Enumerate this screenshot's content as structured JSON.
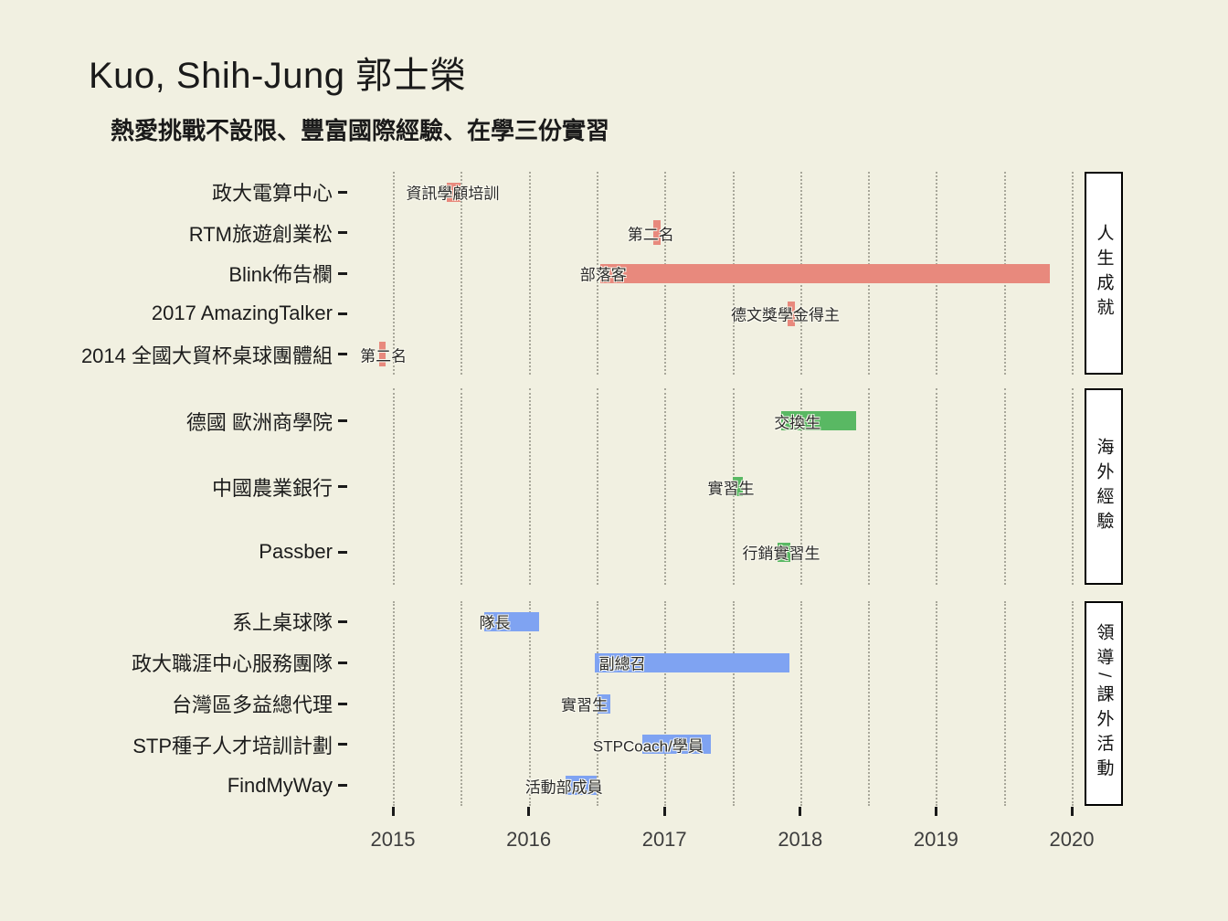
{
  "title": "Kuo, Shih-Jung  郭士榮",
  "subtitle": "熱愛挑戰不設限、豐富國際經驗、在學三份實習",
  "colors": {
    "background": "#f1f0e1",
    "achievement": "#e8897d",
    "overseas": "#59b863",
    "leadership": "#7fa3f2",
    "strip_bg": "#ffffff",
    "strip_border": "#000000",
    "gridline": "#a8a79a",
    "text": "#1a1a1a"
  },
  "chart_data": {
    "type": "gantt",
    "title": "Kuo, Shih-Jung  郭士榮",
    "subtitle": "熱愛挑戰不設限、豐富國際經驗、在學三份實習",
    "x_axis": {
      "ticks": [
        2015,
        2016,
        2017,
        2018,
        2019,
        2020
      ],
      "tick_labels": [
        "2015",
        "2016",
        "2017",
        "2018",
        "2019",
        "2020"
      ],
      "grid_start": 2015,
      "grid_end": 2020,
      "grid_step": 0.5
    },
    "legend": "none",
    "sections": [
      {
        "strip_label": "人生成就",
        "color_key": "achievement",
        "rows": [
          {
            "label": "政大電算中心",
            "annotation": "資訊學顧培訓",
            "start": 2015.4,
            "end": 2015.5,
            "ann_center": 2015.44
          },
          {
            "label": "RTM旅遊創業松",
            "annotation": "第二名",
            "start": 2016.92,
            "end": 2016.97,
            "ann_center": 2016.9
          },
          {
            "label": "Blink佈告欄",
            "annotation": "部落客",
            "start": 2016.53,
            "end": 2019.84,
            "ann_center": 2016.55
          },
          {
            "label": "2017 AmazingTalker",
            "annotation": "德文獎學金得主",
            "start": 2017.91,
            "end": 2017.96,
            "ann_center": 2017.89
          },
          {
            "label": "2014 全國大貿杯桌球團體組",
            "annotation": "第二名",
            "start": 2014.9,
            "end": 2014.95,
            "ann_center": 2014.93
          }
        ]
      },
      {
        "strip_label": "海外經驗",
        "color_key": "overseas",
        "rows": [
          {
            "label": "德國 歐洲商學院",
            "annotation": "交換生",
            "start": 2017.86,
            "end": 2018.41,
            "ann_center": 2017.98
          },
          {
            "label": "中國農業銀行",
            "annotation": "實習生",
            "start": 2017.5,
            "end": 2017.58,
            "ann_center": 2017.49
          },
          {
            "label": "Passber",
            "annotation": "行銷實習生",
            "start": 2017.83,
            "end": 2017.93,
            "ann_center": 2017.86
          }
        ]
      },
      {
        "strip_label": "領導/課外活動",
        "color_key": "leadership",
        "rows": [
          {
            "label": "系上桌球隊",
            "annotation": "隊長",
            "start": 2015.67,
            "end": 2016.08,
            "ann_center": 2015.75
          },
          {
            "label": "政大職涯中心服務團隊",
            "annotation": "副總召",
            "start": 2016.49,
            "end": 2017.92,
            "ann_center": 2016.69
          },
          {
            "label": "台灣區多益總代理",
            "annotation": "實習生",
            "start": 2016.51,
            "end": 2016.6,
            "ann_center": 2016.41
          },
          {
            "label": "STP種子人才培訓計劃",
            "annotation": "STPCoach/學員",
            "start": 2016.84,
            "end": 2017.34,
            "ann_center": 2016.88
          },
          {
            "label": "FindMyWay",
            "annotation": "活動部成員",
            "start": 2016.27,
            "end": 2016.5,
            "ann_center": 2016.26
          }
        ]
      }
    ]
  }
}
